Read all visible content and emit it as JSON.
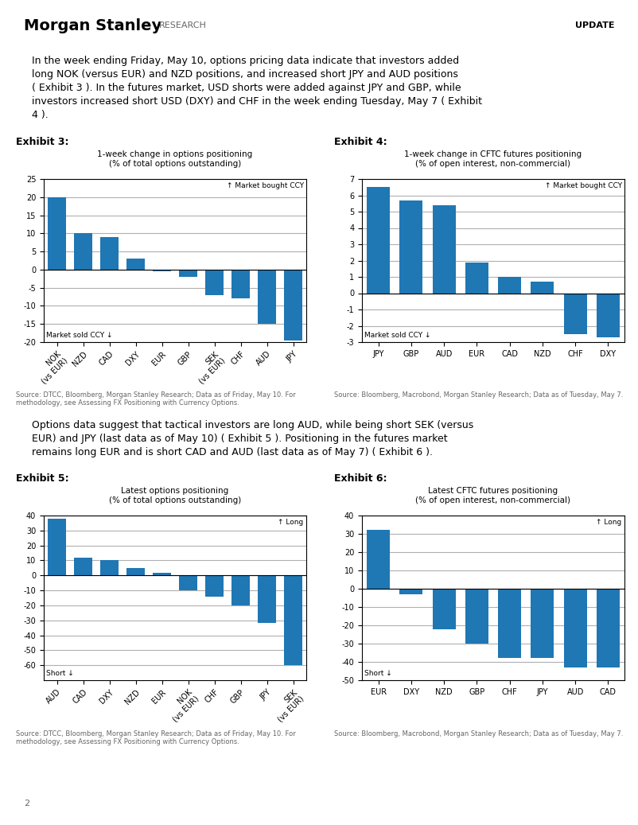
{
  "annotations": [
    "Morgan Stanley",
    "RESEARCH",
    "UPDATE",
    "In the week ending Friday, May 10, options pricing data indicate that investors added\nlong NOK (versus EUR) and NZD positions, and increased short JPY and AUD positions\n( Exhibit 3 ). In the futures market, USD shorts were added against JPY and GBP, while\ninvestors increased short USD (DXY) and CHF in the week ending Tuesday, May 7 ( Exhibit\n4 ).",
    "Options data suggest that tactical investors are long AUD, while being short SEK (versus\nEUR) and JPY (last data as of May 10) ( Exhibit 5 ). Positioning in the futures market\nremains long EUR and is short CAD and AUD (last data as of May 7) ( Exhibit 6 ).",
    "2"
  ],
  "chart_data": [
    {
      "type": "bar",
      "title": "Exhibit 3:",
      "subtitle": "1-week change in options positioning\n(% of total options outstanding)",
      "categories": [
        "NOK\n(vs EUR)",
        "NZD",
        "CAD",
        "DXY",
        "EUR",
        "GBP",
        "SEK\n(vs EUR)",
        "CHF",
        "AUD",
        "JPY"
      ],
      "values": [
        20.0,
        10.0,
        9.0,
        3.0,
        -0.5,
        -2.0,
        -7.0,
        -8.0,
        -15.0,
        -19.5
      ],
      "ylim": [
        -20,
        25
      ],
      "yticks": [
        -20,
        -15,
        -10,
        -5,
        0,
        5,
        10,
        15,
        20,
        25
      ],
      "grid": true,
      "annotations": [
        "↑ Market bought CCY",
        "Market sold CCY ↓",
        "Source: DTCC, Bloomberg, Morgan Stanley Research; Data as of Friday, May 10. For\nmethodology, see Assessing FX Positioning with Currency Options."
      ]
    },
    {
      "type": "bar",
      "title": "Exhibit 4:",
      "subtitle": "1-week change in CFTC futures positioning\n(% of open interest, non-commercial)",
      "categories": [
        "JPY",
        "GBP",
        "AUD",
        "EUR",
        "CAD",
        "NZD",
        "CHF",
        "DXY"
      ],
      "values": [
        6.5,
        5.7,
        5.4,
        1.9,
        1.0,
        0.7,
        -2.5,
        -2.7
      ],
      "ylim": [
        -3,
        7
      ],
      "yticks": [
        -3,
        -2,
        -1,
        0,
        1,
        2,
        3,
        4,
        5,
        6,
        7
      ],
      "grid": true,
      "annotations": [
        "↑ Market bought CCY",
        "Market sold CCY ↓",
        "Source: Bloomberg, Macrobond, Morgan Stanley Research; Data as of Tuesday, May 7."
      ]
    },
    {
      "type": "bar",
      "title": "Exhibit 5:",
      "subtitle": "Latest options positioning\n(% of total options outstanding)",
      "categories": [
        "AUD",
        "CAD",
        "DXY",
        "NZD",
        "EUR",
        "NOK\n(vs EUR)",
        "CHF",
        "GBP",
        "JPY",
        "SEK\n(vs EUR)"
      ],
      "values": [
        38.0,
        12.0,
        10.0,
        5.0,
        2.0,
        -10.0,
        -14.0,
        -20.0,
        -32.0,
        -60.0
      ],
      "ylim": [
        -70,
        40
      ],
      "yticks": [
        -60,
        -50,
        -40,
        -30,
        -20,
        -10,
        0,
        10,
        20,
        30,
        40
      ],
      "grid": true,
      "annotations": [
        "↑ Long",
        "Short ↓",
        "Source: DTCC, Bloomberg, Morgan Stanley Research; Data as of Friday, May 10. For\nmethodology, see Assessing FX Positioning with Currency Options."
      ]
    },
    {
      "type": "bar",
      "title": "Exhibit 6:",
      "subtitle": "Latest CFTC futures positioning\n(% of open interest, non-commercial)",
      "categories": [
        "EUR",
        "DXY",
        "NZD",
        "GBP",
        "CHF",
        "JPY",
        "AUD",
        "CAD"
      ],
      "values": [
        32.0,
        -3.0,
        -22.0,
        -30.0,
        -38.0,
        -38.0,
        -43.0,
        -43.0
      ],
      "ylim": [
        -50,
        40
      ],
      "yticks": [
        -50,
        -40,
        -30,
        -20,
        -10,
        0,
        10,
        20,
        30,
        40
      ],
      "grid": true,
      "annotations": [
        "↑ Long",
        "Short ↓",
        "Source: Bloomberg, Macrobond, Morgan Stanley Research; Data as of Tuesday, May 7."
      ]
    }
  ]
}
